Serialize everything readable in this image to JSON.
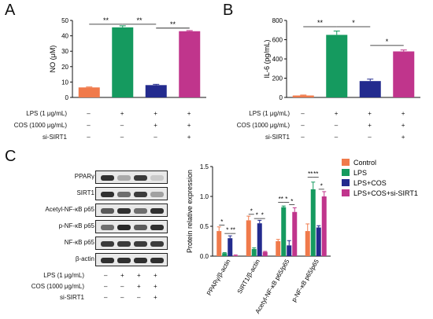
{
  "panels": {
    "A": {
      "label": "A",
      "chart_data": {
        "type": "bar",
        "ylabel": "NO (μM)",
        "ylim": [
          0,
          50
        ],
        "yticks": [
          0,
          10,
          20,
          30,
          40,
          50
        ],
        "categories": [
          "",
          "",
          "",
          ""
        ],
        "values": [
          6.5,
          45.5,
          8.0,
          43.0
        ],
        "errors": [
          0.3,
          1.0,
          0.5,
          0.4
        ],
        "colors": [
          "#f07a4b",
          "#159a5f",
          "#232b8e",
          "#c0358c"
        ],
        "significance": [
          {
            "from": 0,
            "to": 1,
            "label": "**",
            "y": 47.5
          },
          {
            "from": 1,
            "to": 2,
            "label": "**",
            "y": 47.5
          },
          {
            "from": 2,
            "to": 3,
            "label": "**",
            "y": 45.0
          }
        ]
      }
    },
    "B": {
      "label": "B",
      "chart_data": {
        "type": "bar",
        "ylabel": "IL-6 (pg/mL)",
        "ylim": [
          0,
          800
        ],
        "yticks": [
          0,
          200,
          400,
          600,
          800
        ],
        "categories": [
          "",
          "",
          "",
          ""
        ],
        "values": [
          20,
          650,
          170,
          478
        ],
        "errors": [
          5,
          40,
          20,
          15
        ],
        "colors": [
          "#f07a4b",
          "#159a5f",
          "#232b8e",
          "#c0358c"
        ],
        "significance": [
          {
            "from": 0,
            "to": 1,
            "label": "**",
            "y": 735
          },
          {
            "from": 1,
            "to": 2,
            "label": "*",
            "y": 735
          },
          {
            "from": 2,
            "to": 3,
            "label": "*",
            "y": 540
          }
        ]
      }
    },
    "C": {
      "label": "C",
      "chart_data": {
        "type": "bar",
        "ylabel": "Protein relative expression",
        "ylim": [
          0,
          1.5
        ],
        "yticks": [
          "0.0",
          "0.5",
          "1.0",
          "1.5"
        ],
        "categories": [
          "PPARγ/β-actin",
          "SIRT1/β-actin",
          "Acetyl-NF-κB p65/p65",
          "p-NF-κB p65/p65"
        ],
        "series": [
          {
            "name": "Control",
            "color": "#f07a4b",
            "values": [
              0.42,
              0.6,
              0.25,
              0.42
            ],
            "errors": [
              0.07,
              0.07,
              0.03,
              0.12
            ]
          },
          {
            "name": "LPS",
            "color": "#159a5f",
            "values": [
              0.05,
              0.12,
              0.82,
              1.12
            ],
            "errors": [
              0.01,
              0.02,
              0.02,
              0.12
            ]
          },
          {
            "name": "LPS+COS",
            "color": "#232b8e",
            "values": [
              0.3,
              0.55,
              0.18,
              0.48
            ],
            "errors": [
              0.04,
              0.05,
              0.08,
              0.03
            ]
          },
          {
            "name": "LPS+COS+si-SIRT1",
            "color": "#c0358c",
            "values": [
              0.01,
              0.07,
              0.74,
              1.0
            ],
            "errors": [
              0.01,
              0.01,
              0.07,
              0.08
            ]
          }
        ],
        "legend": "right",
        "significance": [
          {
            "group": 0,
            "from": 0,
            "to": 1,
            "label": "*",
            "y": 0.52
          },
          {
            "group": 0,
            "from": 1,
            "to": 2,
            "label": "*",
            "y": 0.38
          },
          {
            "group": 0,
            "from": 2,
            "to": 3,
            "label": "**",
            "y": 0.38
          },
          {
            "group": 1,
            "from": 0,
            "to": 1,
            "label": "*",
            "y": 0.7
          },
          {
            "group": 1,
            "from": 1,
            "to": 2,
            "label": "*",
            "y": 0.63
          },
          {
            "group": 1,
            "from": 2,
            "to": 3,
            "label": "*",
            "y": 0.63
          },
          {
            "group": 2,
            "from": 0,
            "to": 1,
            "label": "**",
            "y": 0.9
          },
          {
            "group": 2,
            "from": 1,
            "to": 2,
            "label": "*",
            "y": 0.9
          },
          {
            "group": 2,
            "from": 2,
            "to": 3,
            "label": "*",
            "y": 0.86
          },
          {
            "group": 3,
            "from": 0,
            "to": 1,
            "label": "**",
            "y": 1.32
          },
          {
            "group": 3,
            "from": 1,
            "to": 2,
            "label": "**",
            "y": 1.32
          },
          {
            "group": 3,
            "from": 2,
            "to": 3,
            "label": "*",
            "y": 1.12
          }
        ]
      }
    }
  },
  "conditions": {
    "AB": [
      {
        "label": "LPS (1 μg/mL)",
        "marks": [
          "–",
          "+",
          "+",
          "+"
        ]
      },
      {
        "label": "COS (1000 μg/mL)",
        "marks": [
          "–",
          "–",
          "+",
          "+"
        ]
      },
      {
        "label": "si-SIRT1",
        "marks": [
          "–",
          "–",
          "–",
          "+"
        ]
      }
    ],
    "C": [
      {
        "label": "LPS (1 μg/mL)",
        "marks": [
          "–",
          "+",
          "+",
          "+"
        ]
      },
      {
        "label": "COS (1000 μg/mL)",
        "marks": [
          "–",
          "–",
          "+",
          "+"
        ]
      },
      {
        "label": "si-SIRT1",
        "marks": [
          "–",
          "–",
          "–",
          "+"
        ]
      }
    ]
  },
  "blot": {
    "rows": [
      {
        "name": "PPARγ",
        "intensity": [
          0.9,
          0.3,
          0.85,
          0.15
        ]
      },
      {
        "name": "SIRT1",
        "intensity": [
          0.9,
          0.6,
          0.85,
          0.35
        ]
      },
      {
        "name": "Acetyl-NF-κB p65",
        "intensity": [
          0.7,
          0.9,
          0.6,
          0.9
        ]
      },
      {
        "name": "p-NF-κB p65",
        "intensity": [
          0.6,
          0.95,
          0.7,
          0.9
        ]
      },
      {
        "name": "NF-κB p65",
        "intensity": [
          0.85,
          0.85,
          0.85,
          0.85
        ]
      },
      {
        "name": "β-actin",
        "intensity": [
          0.9,
          0.9,
          0.9,
          0.9
        ]
      }
    ]
  }
}
